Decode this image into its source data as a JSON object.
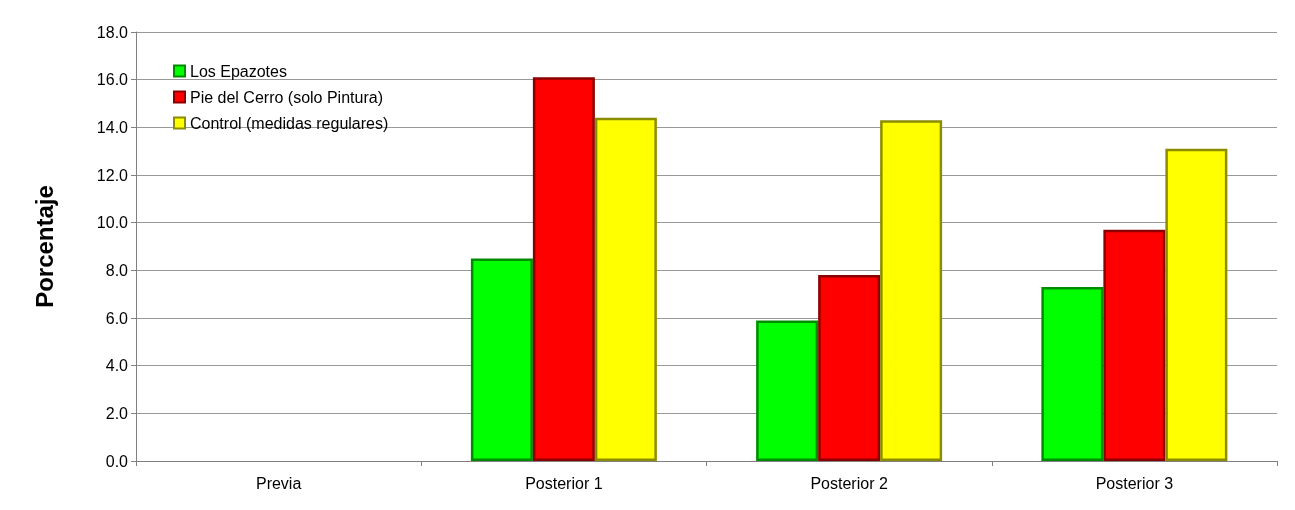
{
  "chart_data": {
    "type": "bar",
    "ylabel": "Porcentaje",
    "categories": [
      "Previa",
      "Posterior 1",
      "Posterior 2",
      "Posterior 3"
    ],
    "series": [
      {
        "name": "Los Epazotes",
        "color": "#00ff00",
        "values": [
          null,
          8.5,
          5.9,
          7.3
        ]
      },
      {
        "name": "Pie del Cerro (solo Pintura)",
        "color": "#ff0000",
        "values": [
          null,
          16.1,
          7.8,
          9.7
        ]
      },
      {
        "name": "Control (medidas regulares)",
        "color": "#ffff00",
        "values": [
          null,
          14.4,
          14.3,
          13.1
        ]
      }
    ],
    "ylim": [
      0,
      18
    ],
    "yticks": [
      {
        "value": 0,
        "label": "0.0"
      },
      {
        "value": 2,
        "label": "2.0"
      },
      {
        "value": 4,
        "label": "4.0"
      },
      {
        "value": 6,
        "label": "6.0"
      },
      {
        "value": 8,
        "label": "8.0"
      },
      {
        "value": 10,
        "label": "10.0"
      },
      {
        "value": 12,
        "label": "12.0"
      },
      {
        "value": 14,
        "label": "14.0"
      },
      {
        "value": 16,
        "label": "16.0"
      },
      {
        "value": 18,
        "label": "18.0"
      }
    ],
    "grid": "y",
    "legend": "top left"
  }
}
